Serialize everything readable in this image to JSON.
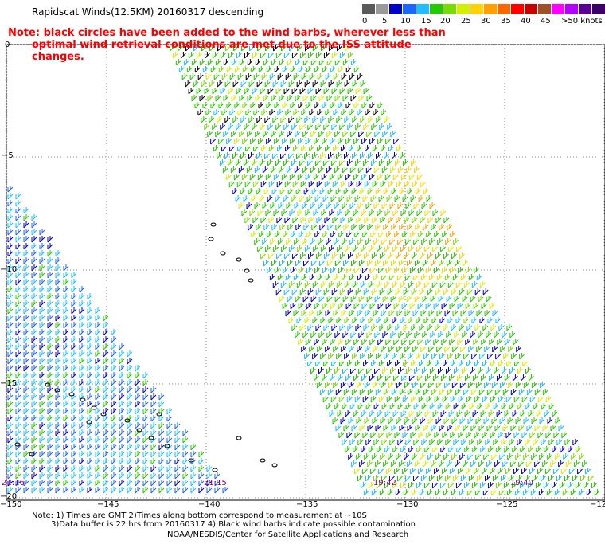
{
  "header": {
    "title": "Rapidscat Winds(12.5KM) 20160317 descending",
    "note_line1": "Note: black circles have been added to the wind barbs, wherever less than",
    "note_line2": "optimal wind retrieval conditions are met due to the ISS attitude changes."
  },
  "legend": {
    "colors": [
      "#5a5a5a",
      "#9a9a9a",
      "#0000c8",
      "#1e64ff",
      "#1ebeff",
      "#28c800",
      "#78dc00",
      "#d2f000",
      "#ffd200",
      "#ffa000",
      "#ff6400",
      "#ff0000",
      "#c80000",
      "#a05028",
      "#ff00ff",
      "#b400ff",
      "#5a0096",
      "#3c0064"
    ],
    "labels": [
      "0",
      "5",
      "10",
      "15",
      "20",
      "25",
      "30",
      "35",
      "40",
      "45",
      ">50 knots"
    ]
  },
  "axes": {
    "lat_labels": [
      "0",
      "−5",
      "−10",
      "−15",
      "−20"
    ],
    "lon_labels": [
      "−150",
      "−145",
      "−140",
      "−135",
      "−130",
      "−125",
      "−12"
    ]
  },
  "pass_times": [
    "21:16",
    "21:15",
    "19:42",
    "19:40"
  ],
  "footer": {
    "line1": "Note: 1) Times are GMT 2)Times along bottom correspond to measurement at ~10S",
    "line2": "3)Data buffer is 22 hrs from 20160317 4) Black wind barbs indicate possible contamination",
    "line3": "NOAA/NESDIS/Center for Satellite Applications and Research"
  }
}
